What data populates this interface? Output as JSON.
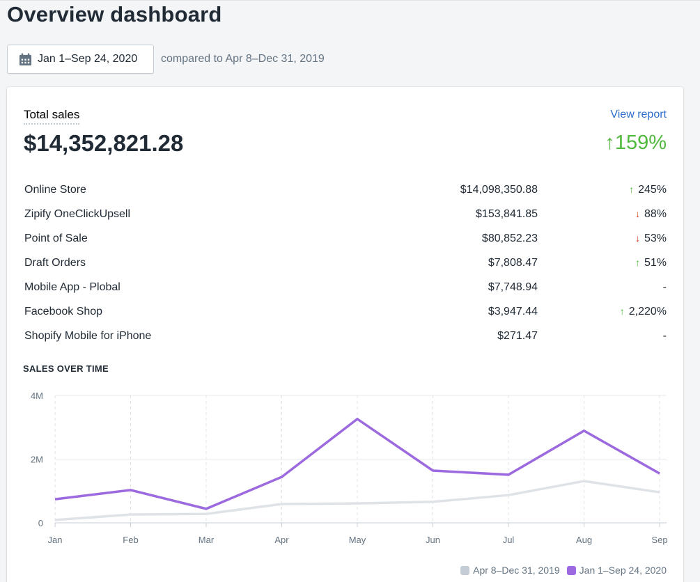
{
  "header": {
    "title": "Overview dashboard",
    "date_range_label": "Jan 1–Sep 24, 2020",
    "date_icon": "calendar-icon",
    "compare_text": "compared to Apr 8–Dec 31, 2019"
  },
  "total_sales": {
    "label": "Total sales",
    "view_report_label": "View report",
    "value": "$14,352,821.28",
    "change": "↑159%",
    "change_direction": "up"
  },
  "colors": {
    "accent_link": "#2c6ecb",
    "up": "#50b83c",
    "down": "#de3618",
    "current_series": "#9c6ade",
    "previous_series": "#dfe3e8"
  },
  "channels": [
    {
      "name": "Online Store",
      "value": "$14,098,350.88",
      "direction": "up",
      "change": "245%"
    },
    {
      "name": "Zipify OneClickUpsell",
      "value": "$153,841.85",
      "direction": "down",
      "change": "88%"
    },
    {
      "name": "Point of Sale",
      "value": "$80,852.23",
      "direction": "down",
      "change": "53%"
    },
    {
      "name": "Draft Orders",
      "value": "$7,808.47",
      "direction": "up",
      "change": "51%"
    },
    {
      "name": "Mobile App - Plobal",
      "value": "$7,748.94",
      "direction": "none",
      "change": "-"
    },
    {
      "name": "Facebook Shop",
      "value": "$3,947.44",
      "direction": "up",
      "change": "2,220%"
    },
    {
      "name": "Shopify Mobile for iPhone",
      "value": "$271.47",
      "direction": "none",
      "change": "-"
    }
  ],
  "chart_data": {
    "type": "line",
    "title": "SALES OVER TIME",
    "xlabel": "",
    "ylabel": "",
    "categories": [
      "Jan",
      "Feb",
      "Mar",
      "Apr",
      "May",
      "Jun",
      "Jul",
      "Aug",
      "Sep"
    ],
    "yticks": [
      0,
      2000000,
      4000000
    ],
    "ytick_labels": [
      "0",
      "2M",
      "4M"
    ],
    "ylim": [
      0,
      4000000
    ],
    "grid": true,
    "legend_position": "bottom-right",
    "series": [
      {
        "name": "Apr 8–Dec 31, 2019",
        "color": "#dfe3e8",
        "values": [
          90000,
          260000,
          280000,
          590000,
          610000,
          660000,
          870000,
          1310000,
          960000
        ]
      },
      {
        "name": "Jan 1–Sep 24, 2020",
        "color": "#9c6ade",
        "values": [
          740000,
          1030000,
          440000,
          1440000,
          3260000,
          1640000,
          1510000,
          2890000,
          1550000
        ]
      }
    ]
  }
}
